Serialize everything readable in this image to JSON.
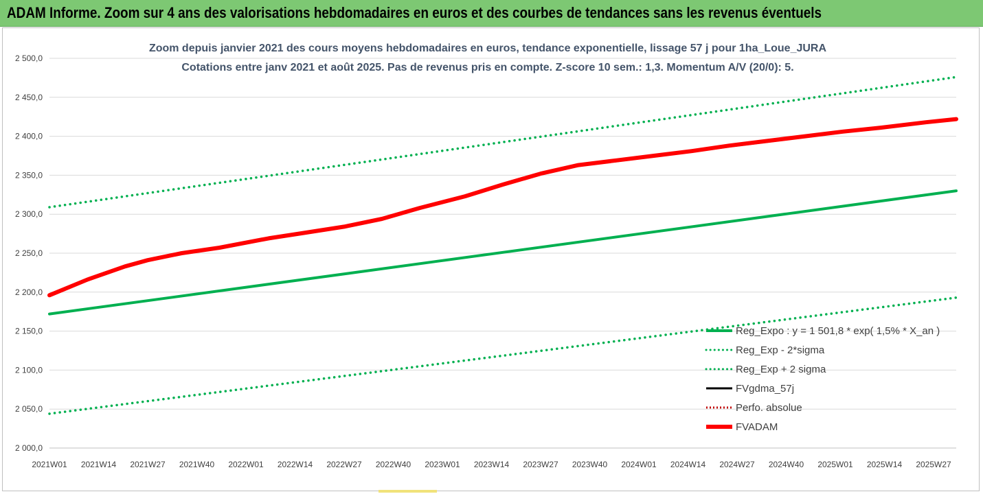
{
  "banner": {
    "title": "ADAM Informe. Zoom sur 4 ans des valorisations hebdomadaires en euros et des courbes de tendances sans les revenus éventuels"
  },
  "chart_data": {
    "type": "line",
    "title": "Zoom depuis janvier 2021 des cours moyens hebdomadaires en euros, tendance exponentielle, lissage 57 j pour 1ha_Loue_JURA",
    "subtitle": "Cotations entre janv 2021 et août 2025.  Pas de revenus pris en compte. Z-score 10 sem.: 1,3. Momentum A/V (20/0): 5.",
    "xlabel": "",
    "ylabel": "",
    "ylim": [
      2000,
      2500
    ],
    "yticks": [
      "2 000,0",
      "2 050,0",
      "2 100,0",
      "2 150,0",
      "2 200,0",
      "2 250,0",
      "2 300,0",
      "2 350,0",
      "2 400,0",
      "2 450,0",
      "2 500,0"
    ],
    "xticks": [
      "2021W01",
      "2021W14",
      "2021W27",
      "2021W40",
      "2022W01",
      "2022W14",
      "2022W27",
      "2022W40",
      "2023W01",
      "2023W14",
      "2023W27",
      "2023W40",
      "2024W01",
      "2024W14",
      "2024W27",
      "2024W40",
      "2025W01",
      "2025W14",
      "2025W27"
    ],
    "x_range_weeks": [
      0,
      240
    ],
    "grid": "horizontal",
    "legend_position": "bottom-right",
    "series": [
      {
        "name": "Reg_Expo : y = 1 501,8 * exp( 1,5% *  X_an )",
        "color": "#00b050",
        "style": "solid",
        "x": [
          0,
          240
        ],
        "y": [
          2172,
          2330
        ]
      },
      {
        "name": "Reg_Exp - 2*sigma",
        "color": "#00b050",
        "style": "dotted",
        "x": [
          0,
          240
        ],
        "y": [
          2044,
          2193
        ]
      },
      {
        "name": "Reg_Exp + 2 sigma",
        "color": "#00b050",
        "style": "dotted",
        "x": [
          0,
          240
        ],
        "y": [
          2309,
          2476
        ]
      },
      {
        "name": "FVgdma_57j",
        "color": "#000000",
        "style": "solid",
        "x": [
          0,
          10,
          20,
          26,
          35,
          45,
          58,
          66,
          78,
          88,
          98,
          110,
          120,
          130,
          140,
          150,
          160,
          170,
          180,
          190,
          200,
          210,
          220,
          232,
          240
        ],
        "y": [
          2196,
          2215,
          2232,
          2240,
          2249,
          2256,
          2268,
          2274,
          2283,
          2293,
          2307,
          2322,
          2337,
          2351,
          2362,
          2368,
          2374,
          2380,
          2387,
          2393,
          2399,
          2405,
          2410,
          2417,
          2421
        ]
      },
      {
        "name": "Perfo. absolue",
        "color": "#c00000",
        "style": "dotted",
        "x": [],
        "y": []
      },
      {
        "name": "FVADAM",
        "color": "#ff0000",
        "style": "thick",
        "x": [
          0,
          10,
          20,
          26,
          35,
          45,
          58,
          66,
          78,
          88,
          98,
          110,
          120,
          130,
          140,
          150,
          160,
          170,
          180,
          190,
          200,
          210,
          220,
          232,
          240
        ],
        "y": [
          2196,
          2216,
          2233,
          2241,
          2250,
          2257,
          2269,
          2275,
          2284,
          2294,
          2308,
          2323,
          2338,
          2352,
          2363,
          2369,
          2375,
          2381,
          2388,
          2394,
          2400,
          2406,
          2411,
          2418,
          2422
        ]
      }
    ]
  }
}
